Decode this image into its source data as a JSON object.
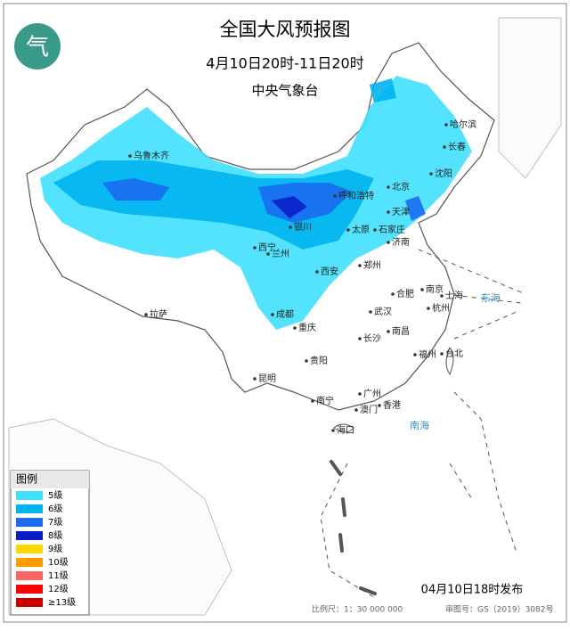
{
  "header": {
    "title": "全国大风预报图",
    "subtitle": "4月10日20时-11日20时",
    "agency": "中央气象台"
  },
  "legend": {
    "title": "图例",
    "items": [
      {
        "label": "5级",
        "color": "#40e0ff"
      },
      {
        "label": "6级",
        "color": "#00b4f0"
      },
      {
        "label": "7级",
        "color": "#1a6cf0"
      },
      {
        "label": "8级",
        "color": "#0a1ec8"
      },
      {
        "label": "9级",
        "color": "#ffd700"
      },
      {
        "label": "10级",
        "color": "#ff9a00"
      },
      {
        "label": "11级",
        "color": "#ff6464"
      },
      {
        "label": "12级",
        "color": "#ff0000"
      },
      {
        "label": "≥13级",
        "color": "#c80000"
      }
    ]
  },
  "map": {
    "places": [
      "乌鲁木齐",
      "哈尔滨",
      "长春",
      "沈阳",
      "北京",
      "天津",
      "呼和浩特",
      "银川",
      "太原",
      "石家庄",
      "济南",
      "西宁",
      "兰州",
      "郑州",
      "西安",
      "南京",
      "上海",
      "合肥",
      "杭州",
      "拉萨",
      "成都",
      "武汉",
      "重庆",
      "长沙",
      "南昌",
      "福州",
      "台北",
      "贵阳",
      "昆明",
      "南宁",
      "广州",
      "澳门",
      "香港",
      "海口",
      "东海",
      "南海"
    ]
  },
  "footer": {
    "issued": "04月10日18时发布",
    "scale": "比例尺：1：30 000 000",
    "map_number": "审图号：GS（2019）3082号"
  }
}
